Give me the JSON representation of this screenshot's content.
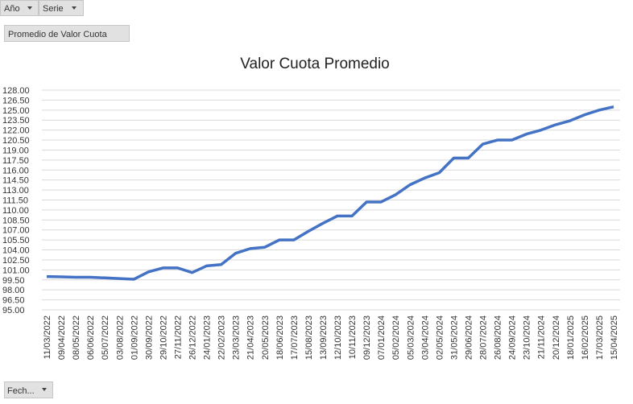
{
  "ui": {
    "filters": [
      "Año",
      "Serie"
    ],
    "value_field": "Promedio de Valor Cuota",
    "axis_field": "Fech..."
  },
  "chart_data": {
    "type": "line",
    "title": "Valor Cuota Promedio",
    "categories": [
      "11/03/2022",
      "09/04/2022",
      "08/05/2022",
      "06/06/2022",
      "05/07/2022",
      "03/08/2022",
      "01/09/2022",
      "30/09/2022",
      "29/10/2022",
      "27/11/2022",
      "26/12/2022",
      "24/01/2023",
      "22/02/2023",
      "23/03/2023",
      "21/04/2023",
      "20/05/2023",
      "18/06/2023",
      "17/07/2023",
      "15/08/2023",
      "13/09/2023",
      "12/10/2023",
      "10/11/2023",
      "09/12/2023",
      "07/01/2024",
      "05/02/2024",
      "05/03/2024",
      "03/04/2024",
      "02/05/2024",
      "31/05/2024",
      "29/06/2024",
      "28/07/2024",
      "26/08/2024",
      "24/09/2024",
      "23/10/2024",
      "21/11/2024",
      "20/12/2024",
      "18/01/2025",
      "16/02/2025",
      "17/03/2025",
      "15/04/2025"
    ],
    "series": [
      {
        "name": "Valor Cuota Promedio",
        "color": "#4472c4",
        "values": [
          100.0,
          99.95,
          99.9,
          99.9,
          99.8,
          99.7,
          99.6,
          100.7,
          101.3,
          101.3,
          100.6,
          101.6,
          101.8,
          103.5,
          104.2,
          104.4,
          105.5,
          105.5,
          106.8,
          108.0,
          109.1,
          109.1,
          111.2,
          111.2,
          112.3,
          113.8,
          114.8,
          115.6,
          117.8,
          117.8,
          119.9,
          120.5,
          120.5,
          121.4,
          122.0,
          122.8,
          123.4,
          124.3,
          125.0,
          125.5
        ]
      }
    ],
    "ylim": [
      95,
      128
    ],
    "yticks": [
      {
        "value": 95,
        "label": "95.00"
      },
      {
        "value": 96.5,
        "label": "96.50"
      },
      {
        "value": 98,
        "label": "98.00"
      },
      {
        "value": 99.5,
        "label": "99.50"
      },
      {
        "value": 101,
        "label": "101.00"
      },
      {
        "value": 102.5,
        "label": "102.50"
      },
      {
        "value": 104,
        "label": "104.00"
      },
      {
        "value": 105.5,
        "label": "105.50"
      },
      {
        "value": 107,
        "label": "107.00"
      },
      {
        "value": 108.5,
        "label": "108.50"
      },
      {
        "value": 110,
        "label": "110.00"
      },
      {
        "value": 111.5,
        "label": "111.50"
      },
      {
        "value": 113,
        "label": "113.00"
      },
      {
        "value": 114.5,
        "label": "114.50"
      },
      {
        "value": 116,
        "label": "116.00"
      },
      {
        "value": 117.5,
        "label": "117.50"
      },
      {
        "value": 119,
        "label": "119.00"
      },
      {
        "value": 120.5,
        "label": "120.50"
      },
      {
        "value": 122,
        "label": "122.00"
      },
      {
        "value": 123.5,
        "label": "123.50"
      },
      {
        "value": 125,
        "label": "125.00"
      },
      {
        "value": 126.5,
        "label": "126.50"
      },
      {
        "value": 128,
        "label": "128.00"
      }
    ],
    "grid": true
  }
}
